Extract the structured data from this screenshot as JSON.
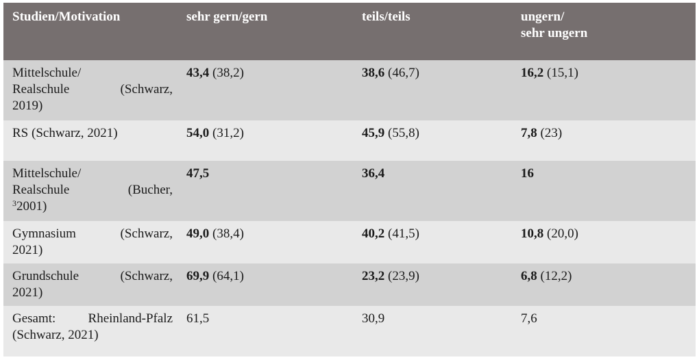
{
  "header": {
    "col1": "Studien/Motivation",
    "col2": "sehr gern/gern",
    "col3": "teils/teils",
    "col4_line1": "ungern/",
    "col4_line2": "sehr ungern"
  },
  "rows": [
    {
      "label_lines": [
        "Mittelschule/",
        "Realschule (Schwarz,",
        "2019)"
      ],
      "c2_bold": "43,4",
      "c2_rest": " (38,2)",
      "c3_bold": "38,6",
      "c3_rest": " (46,7)",
      "c4_bold": "16,2",
      "c4_rest": " (15,1)"
    },
    {
      "label_lines": [
        "RS (Schwarz, 2021)"
      ],
      "c2_bold": "54,0",
      "c2_rest": " (31,2)",
      "c3_bold": "45,9",
      "c3_rest": " (55,8)",
      "c4_bold": "7,8",
      "c4_rest": " (23)"
    },
    {
      "label_lines": [
        "Mittelschule/",
        "Realschule (Bucher,"
      ],
      "label_sup": "3",
      "label_last": "2001)",
      "c2_bold": "47,5",
      "c2_rest": "",
      "c3_bold": "36,4",
      "c3_rest": "",
      "c4_bold": "16",
      "c4_rest": ""
    },
    {
      "label_lines": [
        "Gymnasium (Schwarz,",
        "2021)"
      ],
      "c2_bold": "49,0",
      "c2_rest": " (38,4)",
      "c3_bold": "40,2",
      "c3_rest": " (41,5)",
      "c4_bold": "10,8",
      "c4_rest": " (20,0)"
    },
    {
      "label_lines": [
        "Grundschule (Schwarz,",
        "2021)"
      ],
      "c2_bold": "69,9",
      "c2_rest": " (64,1)",
      "c3_bold": "23,2",
      "c3_rest": " (23,9)",
      "c4_bold": "6,8",
      "c4_rest": " (12,2)"
    },
    {
      "label_lines": [
        "Gesamt: Rheinland-Pfalz",
        "(Schwarz, 2021)"
      ],
      "c2_bold": "",
      "c2_rest": "61,5",
      "c3_bold": "",
      "c3_rest": "30,9",
      "c4_bold": "",
      "c4_rest": "7,6"
    }
  ]
}
